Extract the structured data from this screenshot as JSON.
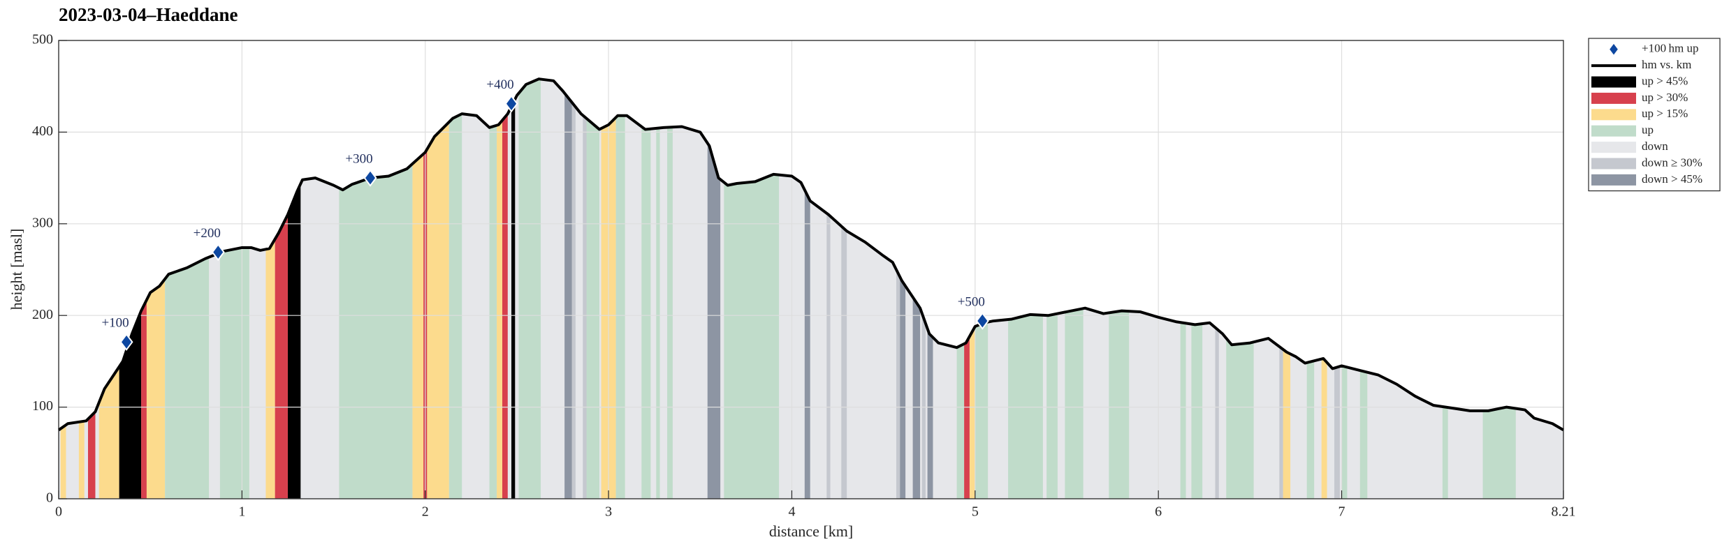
{
  "chart_data": {
    "type": "elevation-profile",
    "title": "2023-03-04–Haeddane",
    "xlabel": "distance [km]",
    "ylabel": "height [masl]",
    "xlim": [
      0,
      8.21
    ],
    "ylim": [
      0,
      500
    ],
    "xticks": [
      0,
      1,
      2,
      3,
      4,
      5,
      6,
      7,
      8.21
    ],
    "yticks": [
      0,
      100,
      200,
      300,
      400,
      500
    ],
    "grid": true,
    "legend": "outside-right-top",
    "markers": {
      "name": "+100 hm up",
      "color": "#0d47a1",
      "x": [
        0.37,
        0.87,
        1.7,
        2.47,
        5.04
      ],
      "y": [
        171,
        269,
        350,
        431,
        194
      ],
      "labels": [
        "+100",
        "+200",
        "+300",
        "+400",
        "+500"
      ]
    },
    "profile": {
      "name": "hm vs. km",
      "color": "#000000",
      "x": [
        0,
        0.05,
        0.15,
        0.2,
        0.25,
        0.3,
        0.35,
        0.4,
        0.45,
        0.5,
        0.55,
        0.6,
        0.7,
        0.8,
        0.9,
        1.0,
        1.05,
        1.1,
        1.15,
        1.2,
        1.25,
        1.3,
        1.33,
        1.4,
        1.5,
        1.55,
        1.6,
        1.7,
        1.8,
        1.9,
        2.0,
        2.05,
        2.15,
        2.2,
        2.28,
        2.35,
        2.4,
        2.45,
        2.5,
        2.55,
        2.62,
        2.7,
        2.75,
        2.85,
        2.95,
        3.0,
        3.05,
        3.1,
        3.2,
        3.3,
        3.4,
        3.5,
        3.55,
        3.6,
        3.65,
        3.7,
        3.8,
        3.9,
        4.0,
        4.05,
        4.1,
        4.2,
        4.3,
        4.4,
        4.5,
        4.55,
        4.6,
        4.7,
        4.75,
        4.8,
        4.9,
        4.95,
        5.0,
        5.05,
        5.1,
        5.2,
        5.3,
        5.4,
        5.5,
        5.6,
        5.7,
        5.8,
        5.9,
        6.0,
        6.1,
        6.2,
        6.28,
        6.35,
        6.4,
        6.5,
        6.6,
        6.7,
        6.75,
        6.8,
        6.9,
        6.95,
        7.0,
        7.1,
        7.2,
        7.3,
        7.4,
        7.5,
        7.6,
        7.7,
        7.8,
        7.9,
        8.0,
        8.05,
        8.15,
        8.21
      ],
      "y": [
        75,
        82,
        85,
        95,
        120,
        135,
        150,
        180,
        205,
        225,
        232,
        245,
        252,
        262,
        270,
        274,
        274,
        271,
        273,
        290,
        310,
        335,
        348,
        350,
        342,
        337,
        343,
        350,
        352,
        360,
        378,
        395,
        415,
        420,
        418,
        405,
        408,
        420,
        440,
        452,
        458,
        456,
        445,
        420,
        403,
        408,
        418,
        418,
        403,
        405,
        406,
        400,
        385,
        350,
        342,
        344,
        346,
        354,
        352,
        345,
        325,
        310,
        292,
        280,
        265,
        258,
        238,
        208,
        180,
        170,
        165,
        170,
        188,
        192,
        194,
        196,
        201,
        200,
        204,
        208,
        202,
        205,
        204,
        198,
        193,
        190,
        192,
        180,
        168,
        170,
        175,
        160,
        155,
        148,
        153,
        142,
        145,
        140,
        135,
        125,
        112,
        102,
        99,
        96,
        96,
        100,
        97,
        88,
        82,
        75
      ]
    },
    "bands": [
      {
        "name": "up > 45%",
        "color": "#000000",
        "ranges": [
          [
            0.33,
            0.45
          ],
          [
            1.25,
            1.32
          ],
          [
            2.47,
            2.49
          ]
        ]
      },
      {
        "name": "up > 30%",
        "color": "#d7404d",
        "ranges": [
          [
            0.16,
            0.2
          ],
          [
            0.45,
            0.48
          ],
          [
            1.18,
            1.25
          ],
          [
            1.99,
            2.01
          ],
          [
            2.42,
            2.45
          ],
          [
            4.94,
            4.97
          ]
        ]
      },
      {
        "name": "up > 15%",
        "color": "#fcdb8d",
        "ranges": [
          [
            0.01,
            0.04
          ],
          [
            0.11,
            0.14
          ],
          [
            0.22,
            0.33
          ],
          [
            0.48,
            0.58
          ],
          [
            1.13,
            1.18
          ],
          [
            1.93,
            1.99
          ],
          [
            2.01,
            2.13
          ],
          [
            2.39,
            2.42
          ],
          [
            2.96,
            3.04
          ],
          [
            4.97,
            5.0
          ],
          [
            6.68,
            6.72
          ],
          [
            6.89,
            6.92
          ]
        ]
      },
      {
        "name": "up",
        "color": "#c0dcca",
        "ranges": [
          [
            0.58,
            0.82
          ],
          [
            0.88,
            1.04
          ],
          [
            1.53,
            1.93
          ],
          [
            2.13,
            2.2
          ],
          [
            2.35,
            2.39
          ],
          [
            2.51,
            2.63
          ],
          [
            2.87,
            2.95
          ],
          [
            3.04,
            3.09
          ],
          [
            3.18,
            3.23
          ],
          [
            3.26,
            3.28
          ],
          [
            3.32,
            3.35
          ],
          [
            3.63,
            3.93
          ],
          [
            4.9,
            4.94
          ],
          [
            5.0,
            5.07
          ],
          [
            5.18,
            5.37
          ],
          [
            5.39,
            5.45
          ],
          [
            5.49,
            5.59
          ],
          [
            5.73,
            5.84
          ],
          [
            6.12,
            6.15
          ],
          [
            6.18,
            6.24
          ],
          [
            6.37,
            6.52
          ],
          [
            6.81,
            6.85
          ],
          [
            7.0,
            7.03
          ],
          [
            7.1,
            7.14
          ],
          [
            7.55,
            7.58
          ],
          [
            7.77,
            7.95
          ]
        ]
      },
      {
        "name": "down",
        "color": "#e6e7ea",
        "ranges": [
          [
            0,
            8.21
          ]
        ]
      },
      {
        "name": "down ≥ 30%",
        "color": "#c5c8cf",
        "ranges": [
          [
            2.8,
            2.82
          ],
          [
            2.86,
            2.88
          ],
          [
            4.19,
            4.21
          ],
          [
            4.27,
            4.3
          ],
          [
            4.57,
            4.59
          ],
          [
            4.71,
            4.73
          ],
          [
            6.31,
            6.33
          ],
          [
            6.66,
            6.68
          ],
          [
            6.96,
            6.99
          ]
        ]
      },
      {
        "name": "down > 45%",
        "color": "#8d95a3",
        "ranges": [
          [
            2.76,
            2.8
          ],
          [
            3.54,
            3.61
          ],
          [
            4.07,
            4.1
          ],
          [
            4.59,
            4.62
          ],
          [
            4.66,
            4.7
          ],
          [
            4.74,
            4.77
          ]
        ]
      }
    ]
  }
}
